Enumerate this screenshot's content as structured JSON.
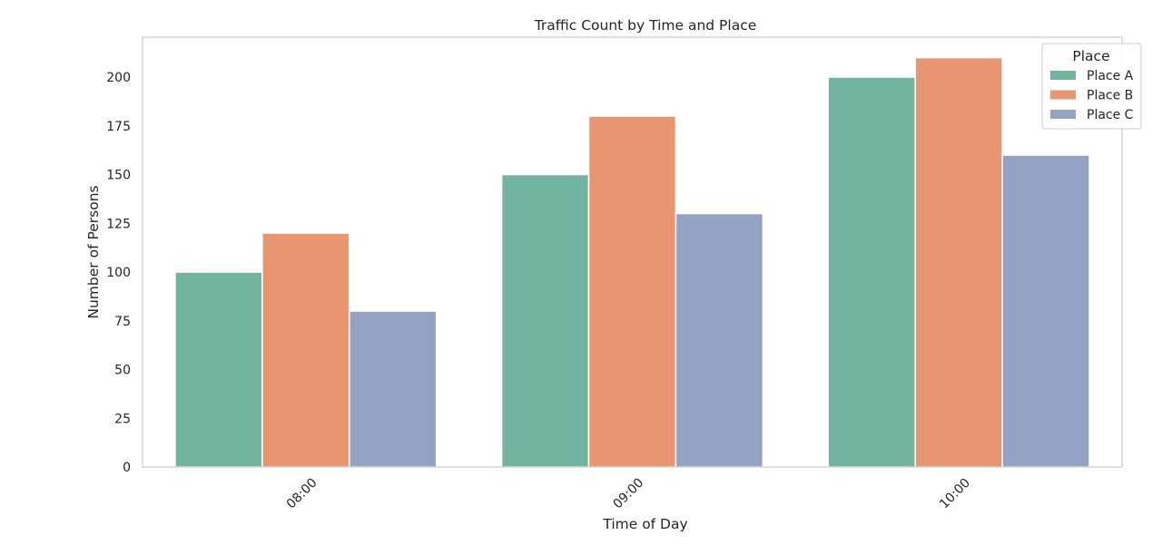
{
  "chart_data": {
    "type": "bar",
    "title": "Traffic Count by Time and Place",
    "xlabel": "Time of Day",
    "ylabel": "Number of Persons",
    "categories": [
      "08:00",
      "09:00",
      "10:00"
    ],
    "series": [
      {
        "name": "Place A",
        "values": [
          100,
          150,
          200
        ],
        "color": "#72b4a0"
      },
      {
        "name": "Place B",
        "values": [
          120,
          180,
          210
        ],
        "color": "#e99572"
      },
      {
        "name": "Place C",
        "values": [
          80,
          130,
          160
        ],
        "color": "#94a3c3"
      }
    ],
    "ylim": [
      0,
      220.5
    ],
    "yticks": [
      0,
      25,
      50,
      75,
      100,
      125,
      150,
      175,
      200
    ],
    "xtick_rotation": 45,
    "grid": false,
    "legend": {
      "title": "Place",
      "position": "top-right"
    }
  }
}
